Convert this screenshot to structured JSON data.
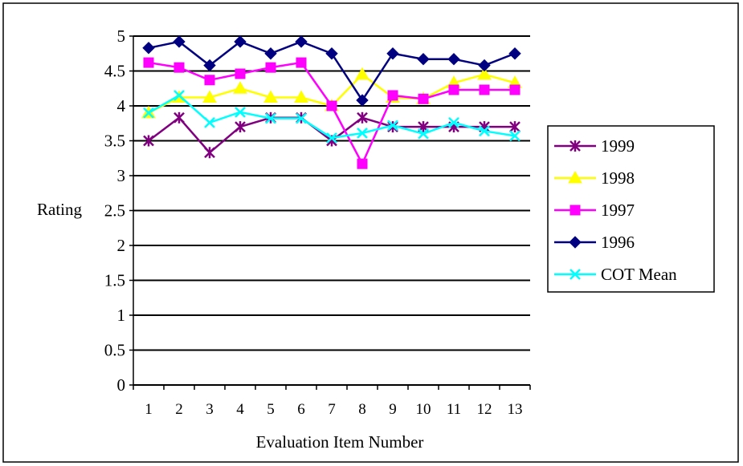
{
  "chart_data": {
    "type": "line",
    "title": "",
    "xlabel": "Evaluation Item Number",
    "ylabel": "Rating",
    "categories": [
      "1",
      "2",
      "3",
      "4",
      "5",
      "6",
      "7",
      "8",
      "9",
      "10",
      "11",
      "12",
      "13"
    ],
    "ylim": [
      0,
      5
    ],
    "yticks": [
      "0",
      "0.5",
      "1",
      "1.5",
      "2",
      "2.5",
      "3",
      "3.5",
      "4",
      "4.5",
      "5"
    ],
    "grid": "horizontal",
    "legend_position": "right",
    "series": [
      {
        "name": "1999",
        "color": "#800080",
        "marker": "star",
        "values": [
          3.5,
          3.83,
          3.33,
          3.7,
          3.83,
          3.83,
          3.5,
          3.83,
          3.7,
          3.7,
          3.7,
          3.7,
          3.7
        ]
      },
      {
        "name": "1998",
        "color": "#ffff00",
        "marker": "triangle",
        "values": [
          3.9,
          4.12,
          4.12,
          4.25,
          4.12,
          4.12,
          4.0,
          4.45,
          4.12,
          4.1,
          4.33,
          4.45,
          4.33
        ]
      },
      {
        "name": "1997",
        "color": "#ff00ff",
        "marker": "square",
        "values": [
          4.62,
          4.55,
          4.37,
          4.46,
          4.55,
          4.62,
          4.0,
          3.17,
          4.15,
          4.1,
          4.23,
          4.23,
          4.23
        ]
      },
      {
        "name": "1996",
        "color": "#000080",
        "marker": "diamond",
        "values": [
          4.83,
          4.92,
          4.58,
          4.92,
          4.75,
          4.92,
          4.75,
          4.08,
          4.75,
          4.67,
          4.67,
          4.58,
          4.75
        ]
      },
      {
        "name": "COT Mean",
        "color": "#00ffff",
        "marker": "x",
        "values": [
          3.9,
          4.15,
          3.76,
          3.91,
          3.82,
          3.82,
          3.54,
          3.61,
          3.72,
          3.6,
          3.76,
          3.64,
          3.57
        ]
      }
    ]
  }
}
